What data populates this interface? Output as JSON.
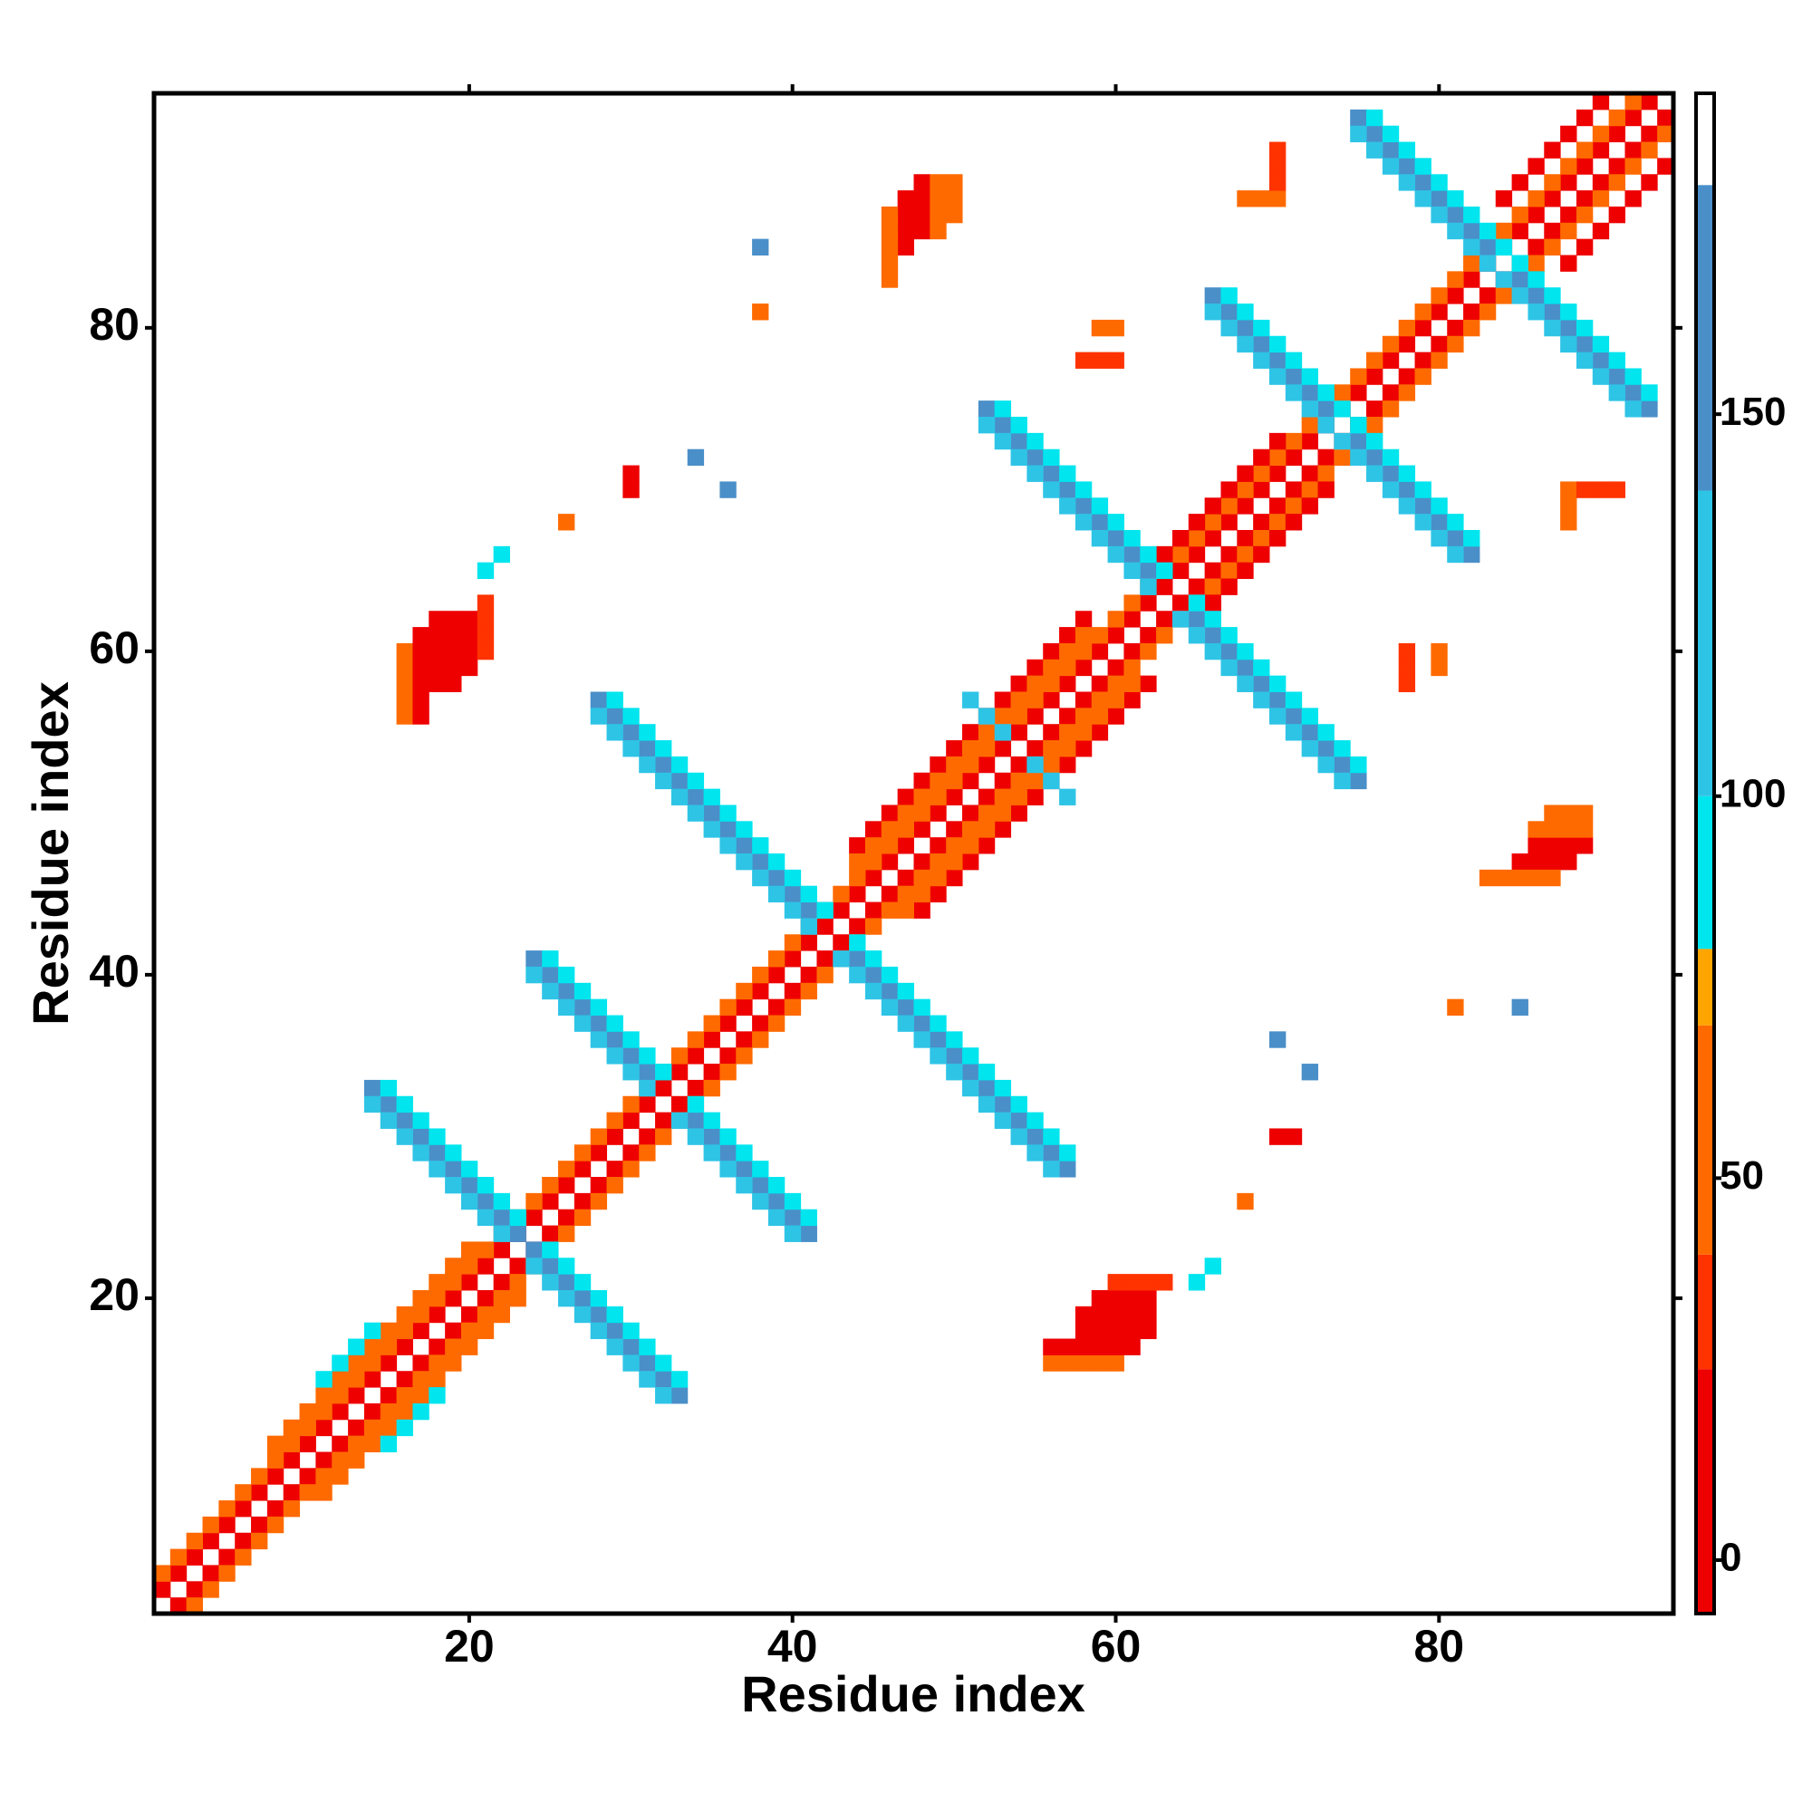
{
  "chart_data": {
    "type": "heatmap",
    "xlabel": "Residue index",
    "ylabel": "Residue index",
    "xlim": [
      0.5,
      94.5
    ],
    "ylim": [
      0.5,
      94.5
    ],
    "xticks": [
      20,
      40,
      60,
      80
    ],
    "yticks": [
      20,
      40,
      60,
      80
    ],
    "symmetric": true,
    "zlim": [
      -7,
      192
    ],
    "zticks": [
      0,
      50,
      100,
      150
    ],
    "color_bins": [
      -7,
      25,
      40,
      70,
      80,
      100,
      140,
      180,
      192
    ],
    "colors": [
      "#ee0000",
      "#ff3300",
      "#ff6a00",
      "#ffa500",
      "#00e5ee",
      "#2ec4e6",
      "#4a8fc8",
      "#ffffff"
    ],
    "runs": [
      [
        1,
        2,
        93,
        94,
        12
      ],
      [
        1,
        3,
        92,
        94,
        45
      ],
      [
        8,
        11,
        20,
        23,
        55
      ],
      [
        44,
        48,
        58,
        62,
        12
      ],
      [
        44,
        47,
        58,
        61,
        55
      ],
      [
        84,
        88,
        90,
        94,
        12
      ],
      [
        62,
        65,
        70,
        73,
        12
      ],
      [
        11,
        15,
        14,
        18,
        95
      ],
      [
        14,
        33,
        23,
        24,
        160
      ],
      [
        14,
        32,
        22,
        24,
        120
      ],
      [
        15,
        33,
        23,
        25,
        95
      ],
      [
        24,
        41,
        31,
        34,
        160
      ],
      [
        24,
        40,
        31,
        33,
        120
      ],
      [
        25,
        41,
        32,
        34,
        95
      ],
      [
        28,
        57,
        41,
        44,
        160
      ],
      [
        28,
        56,
        41,
        43,
        120
      ],
      [
        29,
        57,
        42,
        44,
        95
      ],
      [
        52,
        75,
        62,
        65,
        160
      ],
      [
        52,
        74,
        62,
        64,
        120
      ],
      [
        53,
        75,
        63,
        65,
        95
      ],
      [
        66,
        82,
        73,
        75,
        160
      ],
      [
        66,
        81,
        73,
        74,
        120
      ],
      [
        67,
        82,
        74,
        75,
        95
      ],
      [
        75,
        93,
        83,
        85,
        160
      ],
      [
        75,
        92,
        83,
        84,
        120
      ],
      [
        76,
        93,
        84,
        85,
        95
      ],
      [
        51,
        57,
        53,
        55,
        110
      ],
      [
        16,
        56,
        16,
        60,
        45
      ],
      [
        17,
        56,
        17,
        61,
        12
      ],
      [
        18,
        58,
        18,
        62,
        12
      ],
      [
        19,
        58,
        19,
        62,
        12
      ],
      [
        20,
        59,
        20,
        62,
        12
      ],
      [
        21,
        60,
        21,
        63,
        30
      ],
      [
        21,
        65,
        22,
        66,
        95
      ],
      [
        47,
        85,
        47,
        88,
        12
      ],
      [
        48,
        86,
        48,
        89,
        12
      ],
      [
        49,
        86,
        49,
        89,
        45
      ],
      [
        50,
        87,
        50,
        89,
        45
      ],
      [
        46,
        83,
        46,
        87,
        55
      ],
      [
        68,
        88,
        70,
        88,
        45
      ],
      [
        70,
        89,
        70,
        91,
        30
      ],
      [
        58,
        78,
        60,
        78,
        30
      ],
      [
        59,
        80,
        60,
        80,
        45
      ],
      [
        38,
        85,
        38,
        85,
        160
      ],
      [
        38,
        81,
        38,
        81,
        40
      ],
      [
        26,
        68,
        26,
        68,
        45
      ],
      [
        30,
        70,
        30,
        71,
        12
      ],
      [
        34,
        72,
        34,
        72,
        150
      ],
      [
        36,
        70,
        36,
        70,
        150
      ]
    ]
  }
}
